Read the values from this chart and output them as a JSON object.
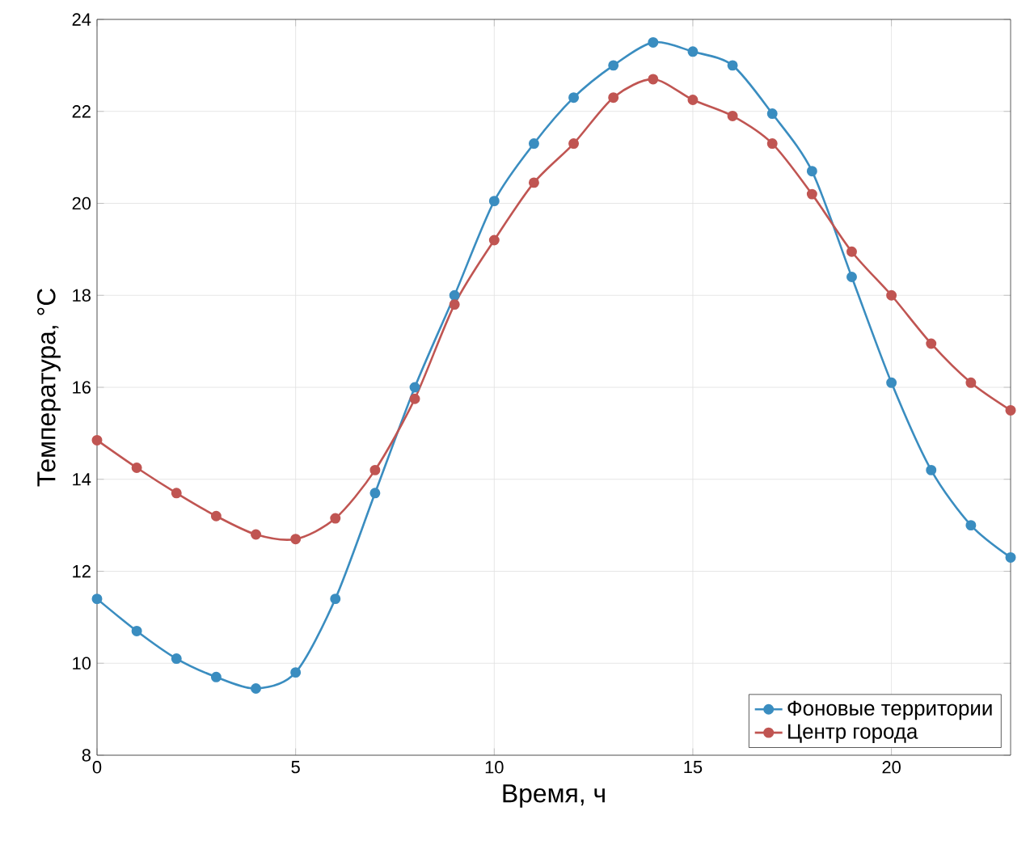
{
  "chart_data": {
    "type": "line",
    "xlabel": "Время, ч",
    "ylabel": "Температура, °C",
    "x": [
      0,
      1,
      2,
      3,
      4,
      5,
      6,
      7,
      8,
      9,
      10,
      11,
      12,
      13,
      14,
      15,
      16,
      17,
      18,
      19,
      20,
      21,
      22,
      23
    ],
    "xlim": [
      0,
      23
    ],
    "xticks": [
      0,
      5,
      10,
      15,
      20
    ],
    "ylim": [
      8,
      24
    ],
    "yticks": [
      8,
      10,
      12,
      14,
      16,
      18,
      20,
      22,
      24
    ],
    "grid": true,
    "legend": "bottom right",
    "marker": "circle",
    "line_style": "solid",
    "series": [
      {
        "name": "Фоновые территории",
        "color": "#3a8dc0",
        "values": [
          11.4,
          10.7,
          10.1,
          9.7,
          9.45,
          9.8,
          11.4,
          13.7,
          16.0,
          18.0,
          20.05,
          21.3,
          22.3,
          23.0,
          23.5,
          23.3,
          23.0,
          21.95,
          20.7,
          18.4,
          16.1,
          14.2,
          13.0,
          12.3
        ]
      },
      {
        "name": "Центр города",
        "color": "#c05552",
        "values": [
          14.85,
          14.25,
          13.7,
          13.2,
          12.8,
          12.7,
          13.15,
          14.2,
          15.75,
          17.8,
          19.2,
          20.45,
          21.3,
          22.3,
          22.7,
          22.25,
          21.9,
          21.3,
          20.2,
          18.95,
          18.0,
          16.95,
          16.1,
          15.5
        ]
      }
    ]
  }
}
